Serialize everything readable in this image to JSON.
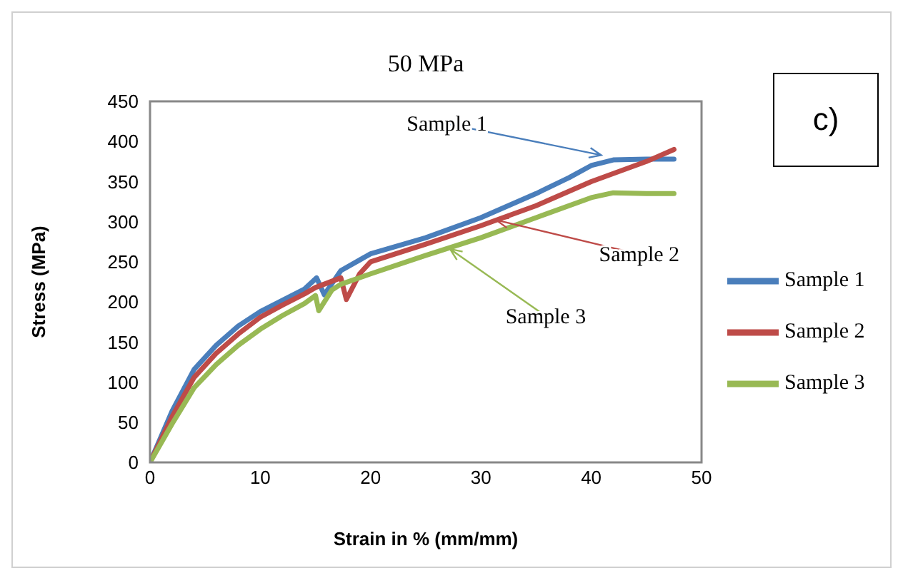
{
  "chart_data": {
    "type": "line",
    "title": "50 MPa",
    "xlabel": "Strain in % (mm/mm)",
    "ylabel": "Stress (MPa)",
    "xlim": [
      0,
      50
    ],
    "ylim": [
      0,
      450
    ],
    "xticks": [
      0,
      10,
      20,
      30,
      40,
      50
    ],
    "yticks": [
      0,
      50,
      100,
      150,
      200,
      250,
      300,
      350,
      400,
      450
    ],
    "grid": false,
    "legend": "right",
    "marker": "none",
    "line_style": "solid",
    "series": [
      {
        "name": "Sample 1",
        "color": "#4a7ebb",
        "x": [
          0,
          2,
          4,
          6,
          8,
          10,
          12,
          14,
          15.1,
          15.8,
          17.3,
          20,
          25,
          30,
          35,
          38,
          40,
          42,
          45,
          47.5
        ],
        "values": [
          0,
          64,
          116,
          146,
          170,
          188,
          202,
          216,
          230,
          209,
          239,
          260,
          280,
          305,
          335,
          355,
          370,
          377,
          378,
          378
        ]
      },
      {
        "name": "Sample 2",
        "color": "#be4b48",
        "x": [
          0,
          2,
          4,
          6,
          8,
          10,
          12,
          14,
          15,
          17.3,
          17.8,
          19,
          20,
          25,
          30,
          35,
          40,
          45,
          47.5
        ],
        "values": [
          0,
          57,
          106,
          136,
          160,
          181,
          196,
          210,
          218,
          230,
          203,
          235,
          250,
          272,
          295,
          320,
          350,
          375,
          390
        ]
      },
      {
        "name": "Sample 3",
        "color": "#98b954",
        "x": [
          0,
          2,
          4,
          6,
          8,
          10,
          12,
          14,
          15,
          15.3,
          16.5,
          17.3,
          20,
          25,
          30,
          35,
          40,
          42,
          45,
          47.5
        ],
        "values": [
          0,
          48,
          93,
          122,
          146,
          166,
          183,
          198,
          208,
          189,
          215,
          222,
          235,
          258,
          280,
          305,
          330,
          336,
          335,
          335
        ]
      }
    ],
    "annotations": [
      {
        "text": "Sample 1",
        "x": 40.9,
        "y": 383
      },
      {
        "text": "Sample 2",
        "x": 31.4,
        "y": 302
      },
      {
        "text": "Sample 3",
        "x": 27.2,
        "y": 266
      },
      "c)"
    ]
  }
}
